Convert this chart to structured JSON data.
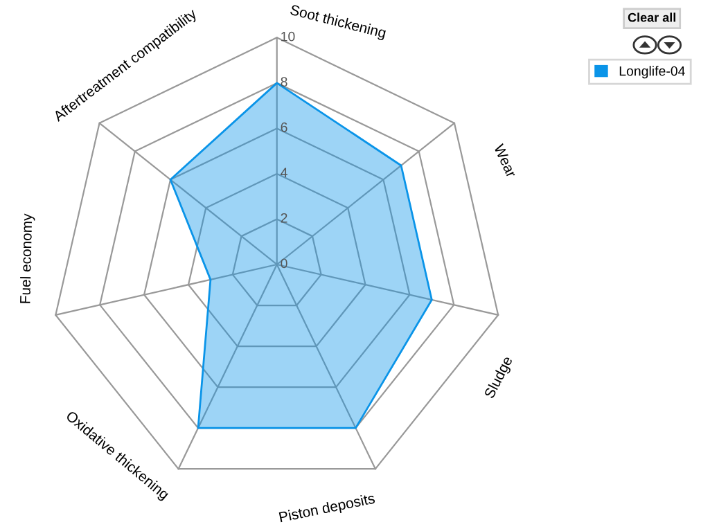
{
  "chart_data": {
    "type": "radar",
    "categories": [
      "Soot thickening",
      "Wear",
      "Sludge",
      "Piston deposits",
      "Oxidative thickening",
      "Fuel economy",
      "Aftertreatment compatibility"
    ],
    "series": [
      {
        "name": "Longlife-04",
        "color": "#0a94e8",
        "values": [
          8,
          7,
          7,
          8,
          8,
          3,
          6
        ]
      }
    ],
    "ylim": [
      0,
      10
    ],
    "yticks": [
      0,
      2,
      4,
      6,
      8,
      10
    ],
    "grid": true,
    "legend": "top right",
    "annotations": [
      "Clear all"
    ]
  }
}
